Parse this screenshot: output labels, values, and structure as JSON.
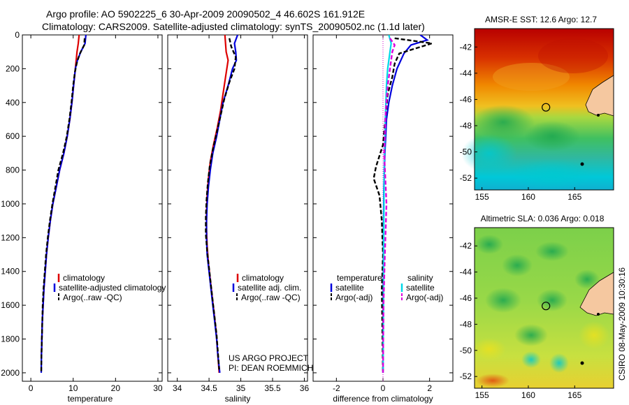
{
  "header": {
    "line1": "Argo profile: AO 5902225_6 30-Apr-2009 20090502_4 46.602S 161.912E",
    "line2": "Climatology: CARS2009. Satellite-adjusted climatology: synTS_20090502.nc (1.1d later)"
  },
  "colors": {
    "climatology": "#dd0000",
    "satellite": "#0000dd",
    "argo": "#000000",
    "salinity_sat": "#00d8e8",
    "salinity_argo": "#dd00dd"
  },
  "chart_data": [
    {
      "type": "line",
      "panel": "temperature",
      "xlabel": "temperature",
      "ylabel": "",
      "xlim": [
        -2,
        31
      ],
      "ylim": [
        2050,
        0
      ],
      "xticks": [
        0,
        10,
        20,
        30
      ],
      "yticks": [
        0,
        200,
        400,
        600,
        800,
        1000,
        1200,
        1400,
        1600,
        1800,
        2000
      ],
      "legend": [
        "climatology",
        "satellite-adjusted climatology",
        "Argo(..raw -QC)"
      ],
      "series": [
        {
          "name": "climatology",
          "style": "solid",
          "color": "#dd0000",
          "points": [
            [
              11.4,
              0
            ],
            [
              11.2,
              50
            ],
            [
              10.9,
              100
            ],
            [
              10.5,
              200
            ],
            [
              10.1,
              300
            ],
            [
              9.7,
              400
            ],
            [
              9.2,
              500
            ],
            [
              8.6,
              600
            ],
            [
              7.8,
              700
            ],
            [
              6.8,
              800
            ],
            [
              6.0,
              900
            ],
            [
              5.2,
              1000
            ],
            [
              4.6,
              1100
            ],
            [
              4.1,
              1200
            ],
            [
              3.7,
              1300
            ],
            [
              3.4,
              1400
            ],
            [
              3.1,
              1500
            ],
            [
              2.9,
              1600
            ],
            [
              2.7,
              1700
            ],
            [
              2.6,
              1800
            ],
            [
              2.5,
              1900
            ]
          ]
        },
        {
          "name": "satellite-adjusted climatology",
          "style": "solid",
          "color": "#0000dd",
          "points": [
            [
              13.0,
              0
            ],
            [
              12.8,
              50
            ],
            [
              11.8,
              100
            ],
            [
              11.0,
              150
            ],
            [
              10.5,
              200
            ],
            [
              10.1,
              300
            ],
            [
              9.7,
              400
            ],
            [
              9.2,
              500
            ],
            [
              8.6,
              600
            ],
            [
              7.8,
              700
            ],
            [
              6.8,
              800
            ],
            [
              6.0,
              900
            ],
            [
              5.2,
              1000
            ],
            [
              4.6,
              1100
            ],
            [
              4.1,
              1200
            ],
            [
              3.7,
              1300
            ],
            [
              3.4,
              1400
            ],
            [
              3.1,
              1500
            ],
            [
              2.9,
              1600
            ],
            [
              2.7,
              1700
            ],
            [
              2.6,
              1800
            ],
            [
              2.5,
              1900
            ],
            [
              2.45,
              2000
            ]
          ]
        },
        {
          "name": "Argo(..raw -QC)",
          "style": "dashed",
          "color": "#000000",
          "points": [
            [
              12.7,
              20
            ],
            [
              12.6,
              60
            ],
            [
              11.6,
              110
            ],
            [
              10.9,
              160
            ],
            [
              10.4,
              220
            ],
            [
              10.0,
              300
            ],
            [
              9.6,
              400
            ],
            [
              9.1,
              500
            ],
            [
              8.5,
              600
            ],
            [
              7.6,
              700
            ],
            [
              6.5,
              800
            ],
            [
              5.8,
              900
            ],
            [
              5.1,
              1000
            ],
            [
              4.5,
              1100
            ],
            [
              4.0,
              1200
            ],
            [
              3.6,
              1300
            ],
            [
              3.3,
              1400
            ],
            [
              3.0,
              1500
            ],
            [
              2.8,
              1600
            ],
            [
              2.7,
              1700
            ],
            [
              2.6,
              1800
            ],
            [
              2.5,
              1900
            ],
            [
              2.45,
              2000
            ]
          ]
        }
      ]
    },
    {
      "type": "line",
      "panel": "salinity",
      "xlabel": "salinity",
      "ylabel": "",
      "xlim": [
        33.85,
        36.05
      ],
      "ylim": [
        2050,
        0
      ],
      "xticks": [
        34,
        34.5,
        35,
        35.5,
        36
      ],
      "legend": [
        "climatology",
        "satellite adj. clim.",
        "Argo(..raw -QC)"
      ],
      "series": [
        {
          "name": "climatology",
          "style": "solid",
          "color": "#dd0000",
          "points": [
            [
              34.75,
              0
            ],
            [
              34.77,
              100
            ],
            [
              34.8,
              150
            ],
            [
              34.76,
              250
            ],
            [
              34.72,
              350
            ],
            [
              34.68,
              450
            ],
            [
              34.63,
              550
            ],
            [
              34.57,
              650
            ],
            [
              34.52,
              750
            ],
            [
              34.49,
              850
            ],
            [
              34.47,
              950
            ],
            [
              34.46,
              1050
            ],
            [
              34.46,
              1150
            ],
            [
              34.47,
              1250
            ],
            [
              34.49,
              1350
            ],
            [
              34.52,
              1450
            ],
            [
              34.55,
              1550
            ],
            [
              34.58,
              1650
            ],
            [
              34.61,
              1750
            ],
            [
              34.63,
              1850
            ],
            [
              34.65,
              1950
            ],
            [
              34.66,
              2000
            ]
          ]
        },
        {
          "name": "satellite adj. clim.",
          "style": "solid",
          "color": "#0000dd",
          "points": [
            [
              34.95,
              0
            ],
            [
              34.9,
              50
            ],
            [
              34.92,
              100
            ],
            [
              34.93,
              150
            ],
            [
              34.87,
              200
            ],
            [
              34.8,
              300
            ],
            [
              34.72,
              400
            ],
            [
              34.67,
              500
            ],
            [
              34.62,
              600
            ],
            [
              34.56,
              700
            ],
            [
              34.52,
              800
            ],
            [
              34.49,
              900
            ],
            [
              34.47,
              1000
            ],
            [
              34.46,
              1100
            ],
            [
              34.46,
              1200
            ],
            [
              34.47,
              1300
            ],
            [
              34.5,
              1400
            ],
            [
              34.53,
              1500
            ],
            [
              34.56,
              1600
            ],
            [
              34.59,
              1700
            ],
            [
              34.62,
              1800
            ],
            [
              34.64,
              1900
            ],
            [
              34.67,
              2000
            ]
          ]
        },
        {
          "name": "Argo(..raw -QC)",
          "style": "dashed",
          "color": "#000000",
          "points": [
            [
              34.82,
              20
            ],
            [
              34.85,
              70
            ],
            [
              34.92,
              130
            ],
            [
              34.9,
              200
            ],
            [
              34.82,
              280
            ],
            [
              34.74,
              380
            ],
            [
              34.68,
              480
            ],
            [
              34.62,
              580
            ],
            [
              34.56,
              680
            ],
            [
              34.51,
              780
            ],
            [
              34.48,
              880
            ],
            [
              34.46,
              980
            ],
            [
              34.45,
              1080
            ],
            [
              34.45,
              1180
            ],
            [
              34.47,
              1280
            ],
            [
              34.5,
              1380
            ],
            [
              34.53,
              1480
            ],
            [
              34.56,
              1580
            ],
            [
              34.59,
              1680
            ],
            [
              34.62,
              1780
            ],
            [
              34.64,
              1880
            ],
            [
              34.66,
              1980
            ]
          ]
        }
      ]
    },
    {
      "type": "line",
      "panel": "difference",
      "xlabel": "difference from climatology",
      "ylabel": "",
      "xlim": [
        -3,
        3
      ],
      "ylim": [
        2050,
        0
      ],
      "xticks": [
        -2,
        0,
        2
      ],
      "legend_left_title": "temperature",
      "legend_right_title": "salinity",
      "legend": [
        "satellite",
        "Argo(-adj)",
        "satellite",
        "Argo(-adj)"
      ],
      "series": [
        {
          "name": "satellite",
          "variable": "temperature",
          "style": "solid",
          "color": "#0000dd",
          "points": [
            [
              1.6,
              0
            ],
            [
              1.9,
              30
            ],
            [
              1.2,
              60
            ],
            [
              0.9,
              110
            ],
            [
              0.6,
              200
            ],
            [
              0.4,
              300
            ],
            [
              0.25,
              400
            ],
            [
              0.15,
              500
            ],
            [
              0.08,
              700
            ],
            [
              0.04,
              900
            ],
            [
              0.02,
              1200
            ],
            [
              0.01,
              1600
            ],
            [
              0.0,
              2000
            ]
          ]
        },
        {
          "name": "Argo(-adj)",
          "variable": "temperature",
          "style": "dashed",
          "color": "#000000",
          "points": [
            [
              0.5,
              20
            ],
            [
              2.1,
              50
            ],
            [
              0.7,
              110
            ],
            [
              0.5,
              170
            ],
            [
              0.4,
              250
            ],
            [
              0.2,
              350
            ],
            [
              0.1,
              500
            ],
            [
              0.0,
              650
            ],
            [
              -0.3,
              780
            ],
            [
              -0.4,
              850
            ],
            [
              -0.15,
              950
            ],
            [
              -0.05,
              1100
            ],
            [
              0.0,
              1300
            ],
            [
              -0.05,
              1500
            ],
            [
              -0.02,
              1800
            ],
            [
              0.0,
              2000
            ]
          ]
        },
        {
          "name": "satellite",
          "variable": "salinity",
          "style": "solid",
          "color": "#00d8e8",
          "points": [
            [
              0.25,
              0
            ],
            [
              0.35,
              50
            ],
            [
              0.3,
              100
            ],
            [
              0.2,
              200
            ],
            [
              0.15,
              300
            ],
            [
              0.1,
              500
            ],
            [
              0.05,
              800
            ],
            [
              0.03,
              1200
            ],
            [
              0.02,
              1600
            ],
            [
              0.0,
              2000
            ]
          ]
        },
        {
          "name": "Argo(-adj)",
          "variable": "salinity",
          "style": "dashed",
          "color": "#dd00dd",
          "points": [
            [
              0.3,
              20
            ],
            [
              0.5,
              60
            ],
            [
              0.4,
              100
            ],
            [
              0.3,
              200
            ],
            [
              0.2,
              300
            ],
            [
              0.12,
              450
            ],
            [
              0.05,
              700
            ],
            [
              0.15,
              1000
            ],
            [
              0.08,
              1300
            ],
            [
              0.02,
              1600
            ],
            [
              0.0,
              2000
            ]
          ]
        }
      ]
    }
  ],
  "panels": {
    "temp": {
      "legend": [
        "climatology",
        "satellite-adjusted climatology",
        "Argo(..raw -QC)"
      ]
    },
    "sal": {
      "legend": [
        "climatology",
        "satellite adj. clim.",
        "Argo(..raw -QC)"
      ],
      "note1": "US ARGO PROJECT",
      "note2": "PI: DEAN ROEMMICH"
    },
    "diff": {
      "left_title": "temperature",
      "right_title": "salinity",
      "left_items": [
        "satellite",
        "Argo(-adj)"
      ],
      "right_items": [
        "satellite",
        "Argo(-adj)"
      ]
    }
  },
  "maps": {
    "sst": {
      "title": "AMSR-E SST: 12.6 Argo: 12.7",
      "xticks": [
        "155",
        "160",
        "165"
      ],
      "yticks": [
        "-42",
        "-44",
        "-46",
        "-48",
        "-50",
        "-52"
      ],
      "lon_range": [
        154.2,
        169.2
      ],
      "lat_range": [
        -40.6,
        -52.9
      ],
      "argo_lon": 161.9,
      "argo_lat": -46.6
    },
    "sla": {
      "title": "Altimetric SLA: 0.036 Argo: 0.018",
      "xticks": [
        "155",
        "160",
        "165"
      ],
      "yticks": [
        "-42",
        "-44",
        "-46",
        "-48",
        "-50",
        "-52"
      ],
      "lon_range": [
        154.2,
        169.2
      ],
      "lat_range": [
        -40.6,
        -52.9
      ],
      "argo_lon": 161.9,
      "argo_lat": -46.6
    }
  },
  "side_label": "CSIRO 08-May-2009 10:30:16"
}
